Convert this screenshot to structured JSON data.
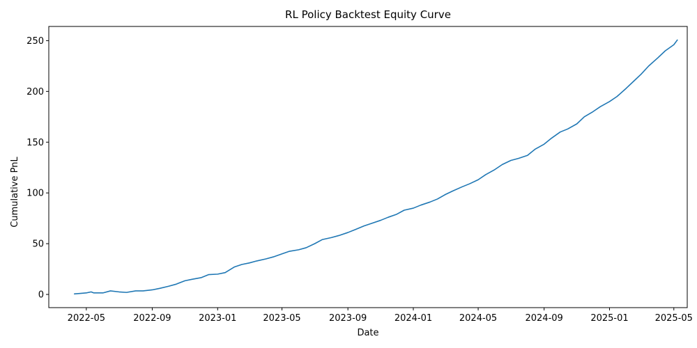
{
  "chart_data": {
    "type": "line",
    "title": "RL Policy Backtest Equity Curve",
    "xlabel": "Date",
    "ylabel": "Cumulative PnL",
    "xlim": [
      "2022-02-20",
      "2025-05-26"
    ],
    "ylim": [
      -13,
      264
    ],
    "x_ticks": [
      "2022-05-01",
      "2022-09-01",
      "2023-01-01",
      "2023-05-01",
      "2023-09-01",
      "2024-01-01",
      "2024-05-01",
      "2024-09-01",
      "2025-01-01",
      "2025-05-01"
    ],
    "x_tick_labels": [
      "2022-05",
      "2022-09",
      "2023-01",
      "2023-05",
      "2023-09",
      "2024-01",
      "2024-05",
      "2024-09",
      "2025-01",
      "2025-05"
    ],
    "y_ticks": [
      0,
      50,
      100,
      150,
      200,
      250
    ],
    "y_tick_labels": [
      "0",
      "50",
      "100",
      "150",
      "200",
      "250"
    ],
    "grid": false,
    "series": [
      {
        "color": "#1f77b4",
        "x": [
          "2022-04-08",
          "2022-04-20",
          "2022-05-01",
          "2022-05-10",
          "2022-05-15",
          "2022-06-01",
          "2022-06-15",
          "2022-07-01",
          "2022-07-15",
          "2022-08-01",
          "2022-08-15",
          "2022-09-01",
          "2022-09-15",
          "2022-10-01",
          "2022-10-15",
          "2022-11-01",
          "2022-11-15",
          "2022-12-01",
          "2022-12-15",
          "2023-01-01",
          "2023-01-15",
          "2023-02-01",
          "2023-02-15",
          "2023-03-01",
          "2023-03-15",
          "2023-04-01",
          "2023-04-15",
          "2023-05-01",
          "2023-05-15",
          "2023-06-01",
          "2023-06-15",
          "2023-07-01",
          "2023-07-15",
          "2023-08-01",
          "2023-08-15",
          "2023-09-01",
          "2023-09-15",
          "2023-10-01",
          "2023-10-15",
          "2023-11-01",
          "2023-11-15",
          "2023-12-01",
          "2023-12-15",
          "2024-01-01",
          "2024-01-15",
          "2024-02-01",
          "2024-02-15",
          "2024-03-01",
          "2024-03-15",
          "2024-04-01",
          "2024-04-15",
          "2024-05-01",
          "2024-05-15",
          "2024-06-01",
          "2024-06-15",
          "2024-07-01",
          "2024-07-15",
          "2024-08-01",
          "2024-08-15",
          "2024-09-01",
          "2024-09-15",
          "2024-10-01",
          "2024-10-15",
          "2024-11-01",
          "2024-11-15",
          "2024-12-01",
          "2024-12-15",
          "2025-01-01",
          "2025-01-15",
          "2025-02-01",
          "2025-02-15",
          "2025-03-01",
          "2025-03-15",
          "2025-04-01",
          "2025-04-15",
          "2025-05-01",
          "2025-05-08"
        ],
        "y": [
          0.5,
          1.0,
          1.5,
          2.5,
          1.5,
          1.5,
          3.5,
          2.5,
          2.0,
          3.5,
          3.5,
          4.5,
          6.0,
          8.0,
          10.0,
          13.5,
          15.0,
          16.5,
          19.5,
          20.0,
          21.5,
          27.0,
          29.5,
          31.0,
          33.0,
          35.0,
          37.0,
          40.0,
          42.5,
          44.0,
          46.0,
          50.0,
          54.0,
          56.0,
          58.0,
          61.0,
          64.0,
          67.5,
          70.0,
          73.0,
          76.0,
          79.0,
          83.0,
          85.0,
          88.0,
          91.0,
          94.0,
          98.5,
          102.0,
          106.0,
          109.0,
          113.0,
          118.0,
          123.0,
          128.0,
          132.0,
          134.0,
          137.0,
          143.0,
          148.0,
          154.0,
          160.0,
          163.0,
          168.0,
          175.0,
          180.0,
          185.0,
          190.0,
          195.0,
          203.0,
          210.0,
          217.0,
          225.0,
          233.0,
          240.0,
          246.0,
          251.0
        ]
      }
    ]
  }
}
